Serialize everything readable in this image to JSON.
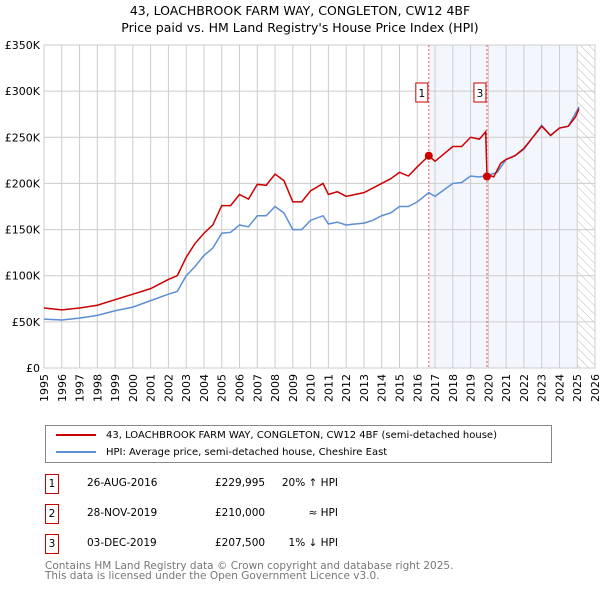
{
  "chart_data": {
    "type": "line",
    "title": "43, LOACHBROOK FARM WAY, CONGLETON, CW12 4BF",
    "subtitle": "Price paid vs. HM Land Registry's House Price Index (HPI)",
    "xlim": [
      1995,
      2026
    ],
    "ylim": [
      0,
      350000
    ],
    "x_ticks": [
      "1995",
      "1996",
      "1997",
      "1998",
      "1999",
      "2000",
      "2001",
      "2002",
      "2003",
      "2004",
      "2005",
      "2006",
      "2007",
      "2008",
      "2009",
      "2010",
      "2011",
      "2012",
      "2013",
      "2014",
      "2015",
      "2016",
      "2017",
      "2018",
      "2019",
      "2020",
      "2021",
      "2022",
      "2023",
      "2024",
      "2025",
      "2026"
    ],
    "y_ticks": [
      {
        "v": 0,
        "l": "£0"
      },
      {
        "v": 50000,
        "l": "£50K"
      },
      {
        "v": 100000,
        "l": "£100K"
      },
      {
        "v": 150000,
        "l": "£150K"
      },
      {
        "v": 200000,
        "l": "£200K"
      },
      {
        "v": 250000,
        "l": "£250K"
      },
      {
        "v": 300000,
        "l": "£300K"
      },
      {
        "v": 350000,
        "l": "£350K"
      }
    ],
    "grid": true,
    "series": [
      {
        "name": "43, LOACHBROOK FARM WAY, CONGLETON, CW12 4BF (semi-detached house)",
        "color": "#cc0000",
        "x": [
          1995,
          1996,
          1997,
          1998,
          1999,
          2000,
          2001,
          2002,
          2002.5,
          2003,
          2003.5,
          2004,
          2004.5,
          2005,
          2005.5,
          2006,
          2006.5,
          2007,
          2007.5,
          2008,
          2008.5,
          2009,
          2009.5,
          2010,
          2010.7,
          2011,
          2011.5,
          2012,
          2012.5,
          2013,
          2013.5,
          2014,
          2014.5,
          2015,
          2015.5,
          2016,
          2016.65,
          2017,
          2017.5,
          2018,
          2018.5,
          2019,
          2019.5,
          2019.85,
          2019.92,
          2020.3,
          2020.7,
          2021,
          2021.5,
          2022,
          2022.5,
          2023,
          2023.5,
          2024,
          2024.5,
          2024.9,
          2025.1
        ],
        "values": [
          65000,
          63000,
          65000,
          68000,
          74000,
          80000,
          86000,
          96000,
          100000,
          120000,
          135000,
          146000,
          155000,
          176000,
          176000,
          188000,
          183000,
          199000,
          198000,
          210000,
          203000,
          180000,
          180000,
          192000,
          200000,
          188000,
          191000,
          186000,
          188000,
          190000,
          195000,
          200000,
          205000,
          212000,
          208000,
          218000,
          230000,
          224000,
          232000,
          240000,
          240000,
          250000,
          248000,
          256000,
          210000,
          207000,
          222000,
          226000,
          230000,
          238000,
          250000,
          262000,
          252000,
          260000,
          262000,
          272000,
          281000
        ]
      },
      {
        "name": "HPI: Average price, semi-detached house, Cheshire East",
        "color": "#5b8fd4",
        "x": [
          1995,
          1996,
          1997,
          1998,
          1999,
          2000,
          2001,
          2002,
          2002.5,
          2003,
          2003.5,
          2004,
          2004.5,
          2005,
          2005.5,
          2006,
          2006.5,
          2007,
          2007.5,
          2008,
          2008.5,
          2009,
          2009.5,
          2010,
          2010.7,
          2011,
          2011.5,
          2012,
          2012.5,
          2013,
          2013.5,
          2014,
          2014.5,
          2015,
          2015.5,
          2016,
          2016.65,
          2017,
          2017.5,
          2018,
          2018.5,
          2019,
          2019.5,
          2020,
          2020.5,
          2021,
          2021.5,
          2022,
          2022.5,
          2023,
          2023.5,
          2024,
          2024.5,
          2025.1
        ],
        "values": [
          53000,
          52000,
          54000,
          57000,
          62000,
          66000,
          73000,
          80000,
          83000,
          100000,
          110000,
          122000,
          130000,
          146000,
          147000,
          155000,
          153000,
          165000,
          165000,
          175000,
          168000,
          150000,
          150000,
          160000,
          165000,
          156000,
          158000,
          155000,
          156000,
          157000,
          160000,
          165000,
          168000,
          175000,
          175000,
          180000,
          190000,
          186000,
          193000,
          200000,
          201000,
          208000,
          207000,
          209000,
          212000,
          226000,
          230000,
          237000,
          250000,
          263000,
          252000,
          260000,
          262000,
          283000
        ]
      }
    ],
    "sales": [
      {
        "label": "1",
        "x": 2016.65,
        "value": 229995,
        "date": "26-AUG-2016",
        "price": "£229,995",
        "hpi": "20% ↑ HPI",
        "marker": true
      },
      {
        "label": "2",
        "x": 2019.91,
        "value": 210000,
        "date": "28-NOV-2019",
        "price": "£210,000",
        "hpi": "≈ HPI",
        "marker": false
      },
      {
        "label": "3",
        "x": 2019.92,
        "value": 207500,
        "date": "03-DEC-2019",
        "price": "£207,500",
        "hpi": "1% ↓ HPI",
        "marker": true
      }
    ],
    "shaded_from": 2016.65,
    "hatched_from": 2025.0
  },
  "footer": {
    "line1": "Contains HM Land Registry data © Crown copyright and database right 2025.",
    "line2": "This data is licensed under the Open Government Licence v3.0."
  }
}
